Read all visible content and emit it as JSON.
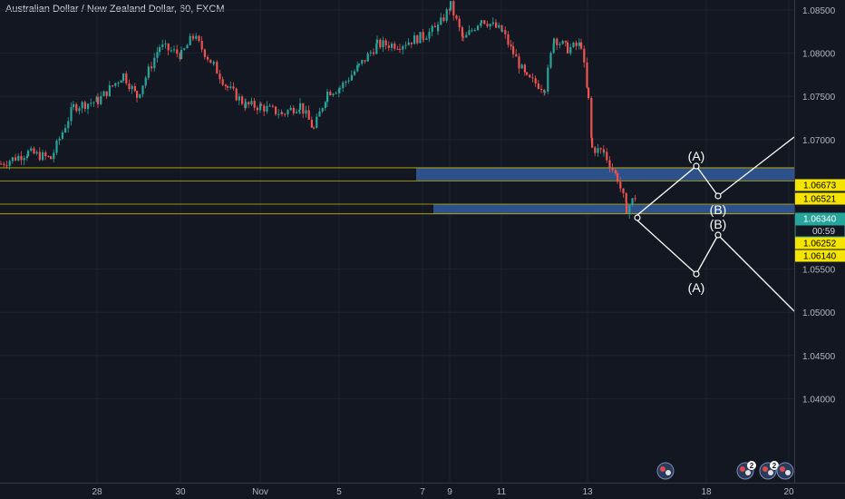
{
  "chart_title": "Australian Dollar / New Zealand Dollar, 60, FXCM",
  "colors": {
    "background": "#131722",
    "grid": "#1e222d",
    "up": "#26a69a",
    "down": "#ef5350",
    "zone": "#2e5491",
    "level_line": "#c8b400",
    "level_tag": "#f5e400",
    "current_tag": "#26a69a",
    "axis_text": "#b2b5be",
    "drawing": "#ffffff"
  },
  "axis": {
    "price_ticks": [
      "1.08500",
      "1.08000",
      "1.07500",
      "1.07000",
      "1.05500",
      "1.05000",
      "1.04500",
      "1.04000"
    ],
    "date_ticks": [
      "28",
      "30",
      "Nov",
      "5",
      "7",
      "9",
      "11",
      "13",
      "18",
      "20"
    ]
  },
  "price_tags": {
    "level_1": "1.06673",
    "level_2": "1.06521",
    "current": "1.06340",
    "countdown": "00:59",
    "level_3": "1.06252",
    "level_4": "1.06140"
  },
  "wave_labels": {
    "upper_a": "(A)",
    "upper_b": "(B)",
    "lower_b": "(B)",
    "lower_a": "(A)"
  },
  "event_badges": [
    {
      "icon": "news-event-icon",
      "count": ""
    },
    {
      "icon": "news-event-icon",
      "count": "2"
    },
    {
      "icon": "news-event-icon",
      "count": "2"
    },
    {
      "icon": "news-event-icon",
      "count": ""
    }
  ],
  "chart_data": {
    "type": "candlestick",
    "title": "Australian Dollar / New Zealand Dollar, 60, FXCM",
    "ylim": [
      1.037,
      1.086
    ],
    "price_axis_ticks": [
      1.085,
      1.08,
      1.075,
      1.07,
      1.055,
      1.05,
      1.045,
      1.04
    ],
    "x_axis_ticks": [
      "28",
      "30",
      "Nov",
      "5",
      "7",
      "9",
      "11",
      "13",
      "18",
      "20"
    ],
    "grid": true,
    "price_path_approx": [
      {
        "x": "27 Oct",
        "close": 1.0672
      },
      {
        "x": "28 Oct",
        "close": 1.0745
      },
      {
        "x": "29 Oct",
        "close": 1.08
      },
      {
        "x": "30 Oct",
        "close": 1.0815
      },
      {
        "x": "31 Oct",
        "close": 1.076
      },
      {
        "x": "1 Nov",
        "close": 1.0735
      },
      {
        "x": "4 Nov",
        "close": 1.0725
      },
      {
        "x": "5 Nov",
        "close": 1.077
      },
      {
        "x": "6 Nov",
        "close": 1.081
      },
      {
        "x": "7 Nov",
        "close": 1.082
      },
      {
        "x": "8 Nov",
        "close": 1.0845
      },
      {
        "x": "11 Nov",
        "close": 1.083
      },
      {
        "x": "12 Nov",
        "close": 1.0765
      },
      {
        "x": "13 Nov",
        "close": 1.0805
      },
      {
        "x": "13 Nov late",
        "close": 1.069
      },
      {
        "x": "14 Nov",
        "close": 1.0634
      }
    ],
    "horizontal_levels": [
      1.06673,
      1.06521,
      1.06252,
      1.0614
    ],
    "zones": [
      {
        "top": 1.06673,
        "bottom": 1.06521
      },
      {
        "top": 1.06252,
        "bottom": 1.0614
      }
    ],
    "current_price": 1.0634,
    "countdown": "00:59",
    "projection_labels": [
      "(A)",
      "(B)",
      "(B)",
      "(A)"
    ]
  }
}
